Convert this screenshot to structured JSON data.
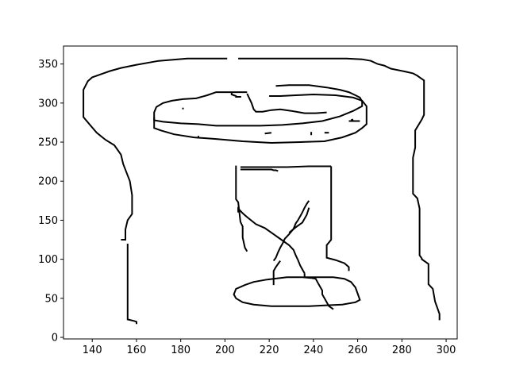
{
  "chart_data": {
    "type": "line",
    "title": "",
    "xlabel": "",
    "ylabel": "",
    "xlim": [
      127,
      305
    ],
    "ylim": [
      -2,
      373
    ],
    "grid": false,
    "legend": "none",
    "x_ticks": [
      140,
      160,
      180,
      200,
      220,
      240,
      260,
      280,
      300
    ],
    "y_ticks": [
      0,
      50,
      100,
      150,
      200,
      250,
      300,
      350
    ],
    "colors": {
      "line": "#000000",
      "axes": "#000000",
      "background": "#ffffff"
    },
    "series": [
      {
        "x": [
          201,
          183,
          170,
          160,
          153,
          148,
          145,
          143,
          140,
          138,
          136,
          136,
          139,
          142,
          146,
          150,
          153,
          154,
          157,
          158,
          158,
          156,
          155,
          155,
          153
        ],
        "y": [
          357,
          357,
          354,
          349,
          345,
          341,
          338,
          336,
          333,
          328,
          317,
          282,
          272,
          262,
          253,
          246,
          234,
          222,
          200,
          182,
          158,
          150,
          138,
          125,
          125
        ]
      },
      {
        "x": [
          156,
          156,
          156,
          156,
          159,
          160,
          160
        ],
        "y": [
          120,
          50,
          26,
          23,
          21,
          20,
          17
        ]
      },
      {
        "x": [
          206,
          255,
          262,
          266,
          269,
          272,
          275,
          282,
          285,
          287,
          288,
          290,
          290,
          289,
          286,
          286,
          285,
          285,
          287,
          288,
          288,
          289,
          289,
          292,
          292,
          294,
          295,
          297,
          297
        ],
        "y": [
          357,
          357,
          356,
          354,
          350,
          348,
          344,
          340,
          338,
          335,
          333,
          329,
          285,
          279,
          265,
          243,
          230,
          184,
          178,
          165,
          105,
          101,
          100,
          94,
          68,
          62,
          46,
          30,
          22
        ]
      },
      {
        "x": [
          210,
          196,
          192,
          187,
          181,
          176,
          172,
          169,
          168,
          168,
          171,
          177,
          186,
          196,
          208,
          221,
          234,
          245,
          253,
          259,
          262,
          264,
          264,
          262,
          258,
          250,
          240,
          232,
          225,
          220
        ],
        "y": [
          314,
          314,
          310,
          306,
          305,
          303,
          300,
          295,
          288,
          268,
          265,
          260,
          256,
          254,
          251,
          249,
          250,
          251,
          256,
          262,
          268,
          273,
          296,
          303,
          307,
          310,
          311,
          310,
          309,
          309
        ]
      },
      {
        "x": [
          223,
          229,
          238,
          246,
          252,
          256,
          259,
          261,
          262,
          262,
          258,
          252,
          244,
          235,
          226,
          216,
          206,
          196,
          188,
          180,
          172,
          168,
          168
        ],
        "y": [
          322,
          323,
          323,
          320,
          317,
          314,
          310,
          307,
          302,
          296,
          290,
          283,
          277,
          274,
          272,
          271,
          271,
          271,
          273,
          274,
          276,
          278,
          282
        ]
      },
      {
        "x": [
          210,
          212,
          213,
          214,
          217,
          221,
          225,
          230,
          236,
          241,
          246
        ],
        "y": [
          312,
          300,
          292,
          289,
          289,
          291,
          292,
          290,
          287,
          287,
          288
        ]
      },
      {
        "x": [
          203,
          203,
          204,
          205,
          205,
          206,
          207,
          207
        ],
        "y": [
          313,
          311,
          310,
          309,
          308,
          308,
          308,
          307
        ]
      },
      {
        "x": [
          205,
          205,
          206,
          207,
          208,
          208,
          209,
          210
        ],
        "y": [
          220,
          177,
          173,
          148,
          142,
          128,
          115,
          110
        ]
      },
      {
        "x": [
          207,
          211,
          215,
          218,
          221,
          222,
          223,
          224
        ],
        "y": [
          215,
          215,
          215,
          215,
          215,
          214,
          214,
          213
        ]
      },
      {
        "x": [
          207,
          228,
          238,
          246,
          248
        ],
        "y": [
          218,
          218,
          219,
          219,
          219
        ]
      },
      {
        "x": [
          248,
          248,
          246,
          246,
          250,
          254,
          256,
          256
        ],
        "y": [
          219,
          125,
          118,
          102,
          99,
          95,
          90,
          85
        ]
      },
      {
        "x": [
          206,
          206,
          208,
          210,
          214,
          218,
          222,
          226,
          229,
          231,
          232,
          233,
          234,
          235,
          236
        ],
        "y": [
          160,
          165,
          159,
          154,
          145,
          140,
          132,
          124,
          118,
          112,
          105,
          99,
          92,
          87,
          82
        ]
      },
      {
        "x": [
          236,
          236,
          245,
          249,
          254,
          257,
          259,
          260,
          261,
          259,
          253,
          245,
          238,
          230,
          221,
          213,
          208,
          205,
          204,
          205,
          209,
          213,
          219
        ],
        "y": [
          82,
          77,
          77,
          77,
          75,
          71,
          64,
          56,
          48,
          45,
          42,
          41,
          40,
          40,
          40,
          42,
          45,
          50,
          55,
          62,
          67,
          71,
          74
        ]
      },
      {
        "x": [
          219,
          228,
          235,
          239,
          241,
          242,
          243,
          244,
          244,
          245,
          246,
          247,
          249
        ],
        "y": [
          74,
          77,
          77,
          76,
          75,
          70,
          65,
          60,
          55,
          50,
          45,
          40,
          36
        ]
      },
      {
        "x": [
          222,
          222,
          222,
          222,
          223,
          224,
          225
        ],
        "y": [
          67,
          77,
          80,
          85,
          90,
          94,
          98
        ]
      },
      {
        "x": [
          222,
          223,
          224,
          225,
          226,
          227,
          229,
          231,
          232,
          233,
          234,
          235,
          236,
          237,
          238
        ],
        "y": [
          98,
          102,
          109,
          115,
          120,
          126,
          132,
          139,
          146,
          150,
          155,
          160,
          166,
          171,
          175
        ]
      },
      {
        "x": [
          229,
          232,
          235,
          237,
          238
        ],
        "y": [
          134,
          141,
          147,
          157,
          166
        ]
      },
      {
        "x": [
          256,
          261
        ],
        "y": [
          277,
          277
        ]
      },
      {
        "x": [
          239,
          239
        ],
        "y": [
          263,
          259
        ]
      },
      {
        "x": [
          245,
          247
        ],
        "y": [
          262,
          262
        ]
      },
      {
        "x": [
          218,
          221
        ],
        "y": [
          261,
          262
        ]
      },
      {
        "x": [
          181,
          181
        ],
        "y": [
          294,
          292
        ]
      },
      {
        "x": [
          188,
          188
        ],
        "y": [
          258,
          256
        ]
      },
      {
        "x": [
          257,
          258
        ],
        "y": [
          278,
          279
        ]
      }
    ]
  }
}
